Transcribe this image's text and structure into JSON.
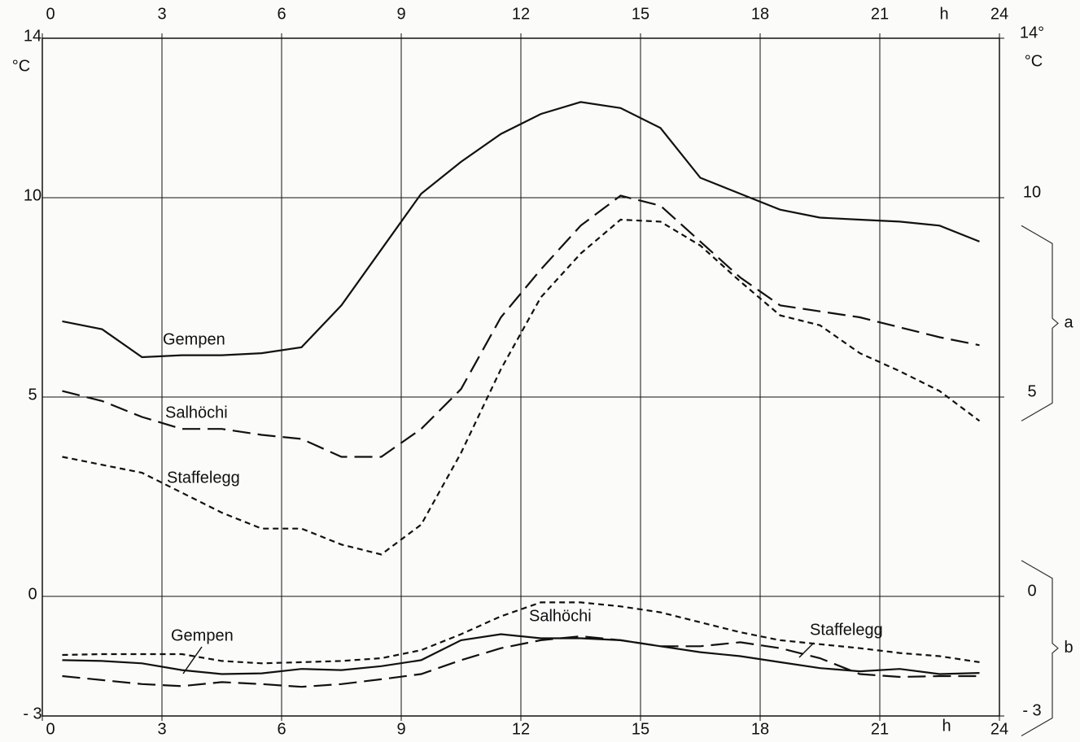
{
  "chart_data": {
    "type": "line",
    "x_label": "h",
    "y_label": "°C",
    "x": [
      0.5,
      1.5,
      2.5,
      3.5,
      4.5,
      5.5,
      6.5,
      7.5,
      8.5,
      9.5,
      10.5,
      11.5,
      12.5,
      13.5,
      14.5,
      15.5,
      16.5,
      17.5,
      18.5,
      19.5,
      20.5,
      21.5,
      22.5,
      23.5
    ],
    "series": [
      {
        "name": "Gempen",
        "color": "#111111",
        "style": "solid",
        "values": [
          6.9,
          6.7,
          6.0,
          6.05,
          6.05,
          6.1,
          6.25,
          7.3,
          8.7,
          10.1,
          10.9,
          11.6,
          12.1,
          12.4,
          12.25,
          11.75,
          10.5,
          10.1,
          9.7,
          9.5,
          9.45,
          9.4,
          9.3,
          8.9
        ]
      },
      {
        "name": "Salhöchi",
        "color": "#111111",
        "style": "dashed",
        "values": [
          5.15,
          4.9,
          4.5,
          4.2,
          4.2,
          4.05,
          3.95,
          3.5,
          3.5,
          4.2,
          5.2,
          7.0,
          8.2,
          9.3,
          10.05,
          9.8,
          8.9,
          8.0,
          7.3,
          7.15,
          7.0,
          6.75,
          6.5,
          6.3
        ]
      },
      {
        "name": "Staffelegg",
        "color": "#111111",
        "style": "dotted",
        "values": [
          3.5,
          3.3,
          3.1,
          2.6,
          2.1,
          1.7,
          1.7,
          1.3,
          1.05,
          1.8,
          3.6,
          5.7,
          7.5,
          8.6,
          9.45,
          9.4,
          8.8,
          7.9,
          7.05,
          6.8,
          6.1,
          5.65,
          5.15,
          4.4
        ]
      },
      {
        "name": "Gempen",
        "color": "#111111",
        "style": "solid",
        "values": [
          -1.6,
          -1.62,
          -1.68,
          -1.85,
          -1.95,
          -1.93,
          -1.82,
          -1.85,
          -1.75,
          -1.6,
          -1.1,
          -0.95,
          -1.05,
          -1.05,
          -1.1,
          -1.25,
          -1.4,
          -1.5,
          -1.65,
          -1.8,
          -1.88,
          -1.82,
          -1.95,
          -1.92
        ]
      },
      {
        "name": "Salhöchi",
        "color": "#111111",
        "style": "dashed",
        "values": [
          -2.0,
          -2.1,
          -2.2,
          -2.25,
          -2.15,
          -2.2,
          -2.27,
          -2.2,
          -2.08,
          -1.95,
          -1.6,
          -1.3,
          -1.1,
          -1.0,
          -1.1,
          -1.25,
          -1.25,
          -1.15,
          -1.3,
          -1.55,
          -1.95,
          -2.02,
          -2.0,
          -2.0
        ]
      },
      {
        "name": "Staffelegg",
        "color": "#111111",
        "style": "dotted",
        "values": [
          -1.47,
          -1.45,
          -1.45,
          -1.45,
          -1.62,
          -1.68,
          -1.65,
          -1.62,
          -1.55,
          -1.35,
          -0.95,
          -0.5,
          -0.15,
          -0.15,
          -0.25,
          -0.4,
          -0.65,
          -0.9,
          -1.1,
          -1.2,
          -1.3,
          -1.42,
          -1.5,
          -1.65
        ]
      }
    ],
    "xlim": [
      0,
      24
    ],
    "xticks": [
      0,
      3,
      6,
      9,
      12,
      15,
      18,
      21,
      24
    ],
    "ylim": [
      -3,
      14
    ],
    "yticks": [
      14,
      10,
      5,
      0,
      {
        "value": -3,
        "label": "- 3"
      }
    ],
    "y2lim": [
      -3,
      14
    ],
    "y2ticks": [
      {
        "value": 14,
        "label": "14°"
      },
      10,
      5,
      0,
      {
        "value": -3,
        "label": "- 3"
      }
    ],
    "grid": true,
    "annotations": [
      {
        "text": "a",
        "y": [
          9.3,
          4.4
        ]
      },
      {
        "text": "b",
        "y": [
          0.9,
          -3.5
        ]
      }
    ]
  }
}
